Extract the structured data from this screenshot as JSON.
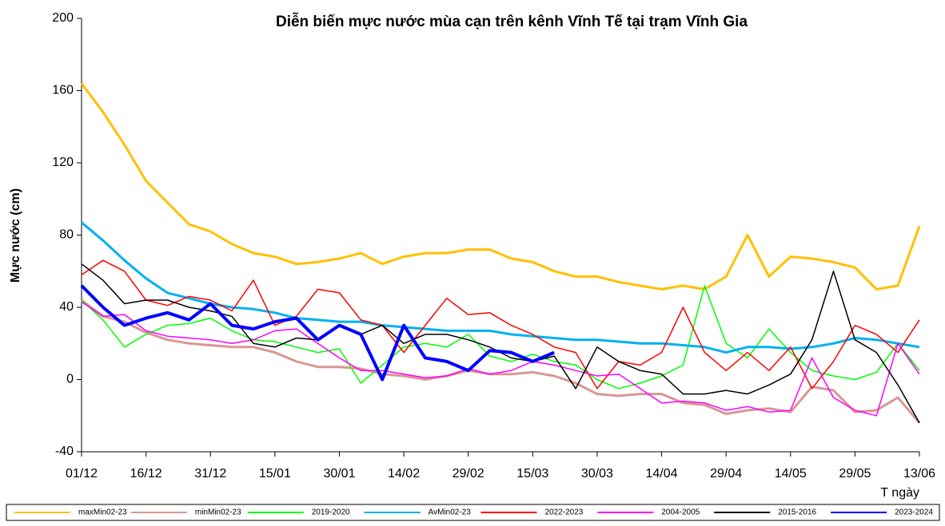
{
  "chart_data": {
    "type": "line",
    "title": "Diễn biến mực nước mùa cạn trên kênh Vĩnh Tế tại trạm Vĩnh Gia",
    "y_label": "Mực nước (cm)",
    "x_label": "T ngày",
    "categories": [
      "01/12",
      null,
      null,
      "16/12",
      null,
      null,
      "31/12",
      null,
      null,
      "15/01",
      null,
      null,
      "30/01",
      null,
      null,
      "14/02",
      null,
      null,
      "29/02",
      null,
      null,
      "15/03",
      null,
      null,
      "30/03",
      null,
      null,
      "14/04",
      null,
      null,
      "29/04",
      null,
      null,
      "14/05",
      null,
      null,
      "29/05",
      null,
      null,
      "13/06"
    ],
    "ylim": [
      -40,
      200
    ],
    "yticks": [
      -40,
      0,
      40,
      80,
      120,
      160,
      200
    ],
    "series": [
      {
        "name": "maxMin02-23",
        "color": "#ffc000",
        "width": 3,
        "values": [
          164,
          148,
          130,
          110,
          98,
          86,
          82,
          75,
          70,
          68,
          64,
          65,
          67,
          70,
          64,
          68,
          70,
          70,
          72,
          72,
          67,
          65,
          60,
          57,
          57,
          54,
          52,
          50,
          52,
          50,
          57,
          80,
          57,
          68,
          67,
          65,
          62,
          50,
          52,
          85
        ]
      },
      {
        "name": "minMin02-23",
        "color": "#d99694",
        "width": 3,
        "values": [
          44,
          35,
          32,
          26,
          22,
          20,
          19,
          18,
          18,
          15,
          10,
          7,
          7,
          6,
          3,
          2,
          0,
          2,
          5,
          3,
          3,
          4,
          2,
          -2,
          -8,
          -9,
          -8,
          -8,
          -13,
          -14,
          -19,
          -17,
          -16,
          -18,
          -4,
          -6,
          -18,
          -17,
          -10,
          -24
        ]
      },
      {
        "name": "2019-2020",
        "color": "#00ff00",
        "width": 1.5,
        "values": [
          44,
          33,
          18,
          25,
          30,
          31,
          34,
          27,
          22,
          21,
          18,
          15,
          17,
          -2,
          8,
          18,
          20,
          18,
          25,
          13,
          10,
          14,
          10,
          8,
          0,
          -5,
          -2,
          2,
          8,
          52,
          20,
          12,
          28,
          15,
          5,
          2,
          0,
          4,
          20,
          5
        ]
      },
      {
        "name": "AvMin02-23",
        "color": "#00b0f0",
        "width": 3,
        "values": [
          87,
          77,
          66,
          56,
          48,
          45,
          42,
          40,
          39,
          37,
          34,
          33,
          32,
          32,
          30,
          29,
          28,
          27,
          27,
          27,
          25,
          24,
          23,
          22,
          22,
          21,
          20,
          20,
          19,
          18,
          15,
          18,
          18,
          17,
          18,
          20,
          23,
          22,
          20,
          18
        ]
      },
      {
        "name": "2022-2023",
        "color": "#ff0000",
        "width": 1.5,
        "values": [
          58,
          66,
          60,
          44,
          41,
          46,
          44,
          38,
          55,
          30,
          35,
          50,
          48,
          33,
          30,
          15,
          30,
          45,
          36,
          37,
          30,
          25,
          18,
          15,
          -5,
          10,
          8,
          15,
          40,
          15,
          5,
          15,
          5,
          18,
          -5,
          10,
          30,
          25,
          15,
          33
        ]
      },
      {
        "name": "2004-2005",
        "color": "#ff00ff",
        "width": 1.5,
        "values": [
          43,
          35,
          36,
          27,
          24,
          23,
          22,
          20,
          22,
          27,
          28,
          20,
          12,
          5,
          5,
          3,
          1,
          2,
          6,
          3,
          5,
          10,
          8,
          5,
          2,
          3,
          -5,
          -13,
          -12,
          -13,
          -17,
          -15,
          -18,
          -17,
          12,
          -10,
          -17,
          -20,
          20,
          3
        ]
      },
      {
        "name": "2015-2016",
        "color": "#000000",
        "width": 1.5,
        "values": [
          64,
          55,
          42,
          44,
          44,
          40,
          38,
          35,
          20,
          18,
          23,
          22,
          30,
          25,
          30,
          20,
          25,
          25,
          22,
          18,
          12,
          10,
          13,
          -5,
          18,
          10,
          5,
          3,
          -8,
          -8,
          -6,
          -8,
          -3,
          3,
          22,
          60,
          22,
          15,
          -3,
          -24
        ]
      },
      {
        "name": "2023-2024",
        "color": "#0000ff",
        "width": 4,
        "values": [
          52,
          40,
          30,
          34,
          37,
          33,
          42,
          30,
          28,
          32,
          34,
          22,
          30,
          25,
          0,
          30,
          12,
          10,
          5,
          16,
          15,
          10,
          15,
          null,
          null,
          null,
          null,
          null,
          null,
          null,
          null,
          null,
          null,
          null,
          null,
          null,
          null,
          null,
          null,
          null
        ]
      }
    ]
  }
}
